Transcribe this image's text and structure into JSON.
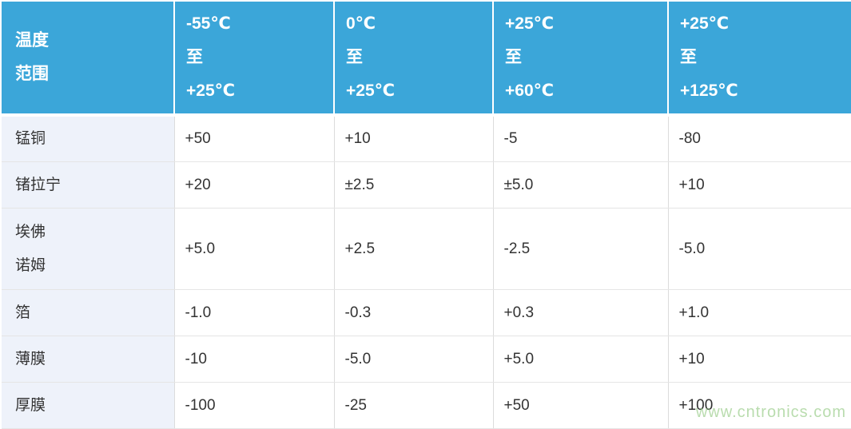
{
  "chart_data": {
    "type": "table",
    "title": "",
    "header": {
      "corner_lines": [
        "温度",
        "范围"
      ],
      "corner_text": "温度范围",
      "column_lines": [
        [
          "-55℃",
          "至",
          "+25℃"
        ],
        [
          "0℃",
          "至",
          "+25℃"
        ],
        [
          "+25℃",
          "至",
          "+60℃"
        ],
        [
          "+25℃",
          "至",
          "+125℃"
        ]
      ],
      "column_ranges": [
        "-55℃ 至 +25℃",
        "0℃ 至 +25℃",
        "+25℃ 至 +60℃",
        "+25℃ 至 +125℃"
      ]
    },
    "rows": [
      {
        "label_lines": [
          "锰铜"
        ],
        "label": "锰铜",
        "values": [
          "+50",
          "+10",
          "-5",
          "-80"
        ]
      },
      {
        "label_lines": [
          "锗拉宁"
        ],
        "label": "锗拉宁",
        "values": [
          "+20",
          "±2.5",
          "±5.0",
          "+10"
        ]
      },
      {
        "label_lines": [
          "埃佛",
          "诺姆"
        ],
        "label": "埃佛诺姆",
        "values": [
          "+5.0",
          "+2.5",
          "-2.5",
          "-5.0"
        ]
      },
      {
        "label_lines": [
          "箔"
        ],
        "label": "箔",
        "values": [
          "-1.0",
          "-0.3",
          "+0.3",
          "+1.0"
        ]
      },
      {
        "label_lines": [
          "薄膜"
        ],
        "label": "薄膜",
        "values": [
          "-10",
          "-5.0",
          "+5.0",
          "+10"
        ]
      },
      {
        "label_lines": [
          "厚膜"
        ],
        "label": "厚膜",
        "values": [
          "-100",
          "-25",
          "+50",
          "+100"
        ]
      }
    ]
  },
  "watermark": {
    "text": "www.cntronics.com"
  },
  "colors": {
    "header_bg": "#3BA6D9",
    "header_text": "#FFFFFF",
    "label_column_bg": "#EEF2FA",
    "body_text": "#333333",
    "grid_border": "#E0E0E0",
    "watermark_green": "#8FC87E"
  }
}
